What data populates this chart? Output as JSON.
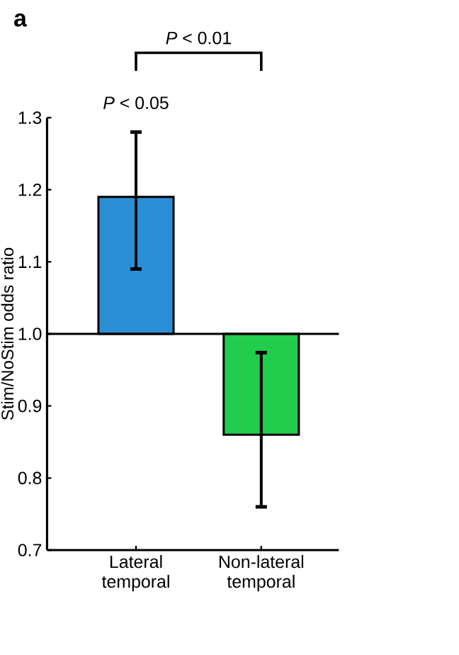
{
  "chart_data": {
    "type": "bar",
    "categories": [
      "Lateral temporal",
      "Non-lateral temporal"
    ],
    "base": [
      1.0,
      1.0
    ],
    "values": [
      0.19,
      -0.14
    ],
    "colors": [
      "#2a8fd6",
      "#22cc4c"
    ],
    "errors": [
      [
        1.09,
        1.28
      ],
      [
        0.76,
        0.974
      ]
    ],
    "ylabel": "Stim/NoStim odds ratio",
    "ylim": [
      0.7,
      1.3
    ],
    "yticks": [
      0.7,
      0.8,
      0.9,
      {
        "value": 1.0,
        "label": "1.0"
      },
      1.1,
      1.2,
      1.3
    ],
    "ref_lines": [
      {
        "axis": "y",
        "value": 1.0,
        "color": "#000000"
      }
    ],
    "annotations": [
      "a",
      "*P* < 0.05",
      "*P* < 0.01"
    ]
  }
}
